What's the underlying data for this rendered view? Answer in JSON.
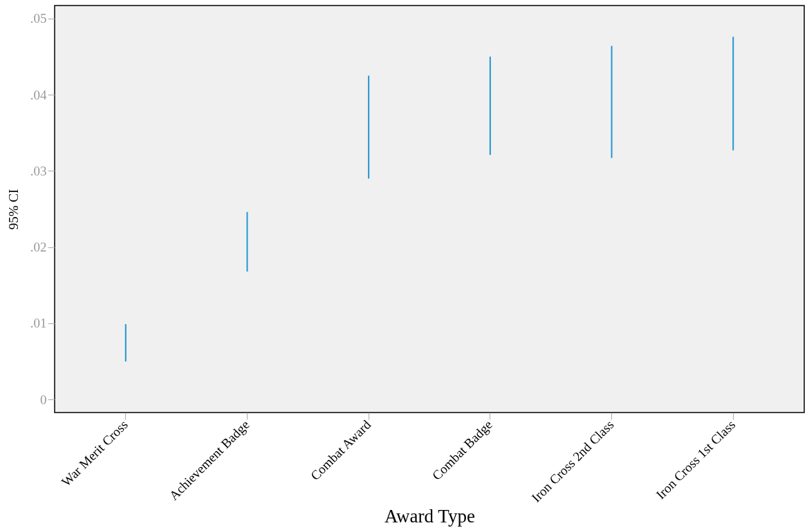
{
  "chart_data": {
    "type": "bar",
    "xlabel": "Award Type",
    "ylabel": "95% CI",
    "categories": [
      "War Merit Cross",
      "Achievement Badge",
      "Combat Award",
      "Combat Badge",
      "Iron Cross 2nd Class",
      "Iron Cross 1st Class"
    ],
    "base": [
      0.005,
      0.0168,
      0.029,
      0.0321,
      0.0317,
      0.0327
    ],
    "values": [
      0.0049,
      0.0078,
      0.0135,
      0.0129,
      0.0147,
      0.0149
    ],
    "color": "#1f96d0",
    "ylim": [
      -0.0017,
      0.0517
    ],
    "yticks": [
      0,
      {
        "value": 0.01,
        "label": ".01"
      },
      {
        "value": 0.02,
        "label": ".02"
      },
      {
        "value": 0.03,
        "label": ".03"
      },
      {
        "value": 0.04,
        "label": ".04"
      },
      {
        "value": 0.05,
        "label": ".05"
      }
    ]
  }
}
